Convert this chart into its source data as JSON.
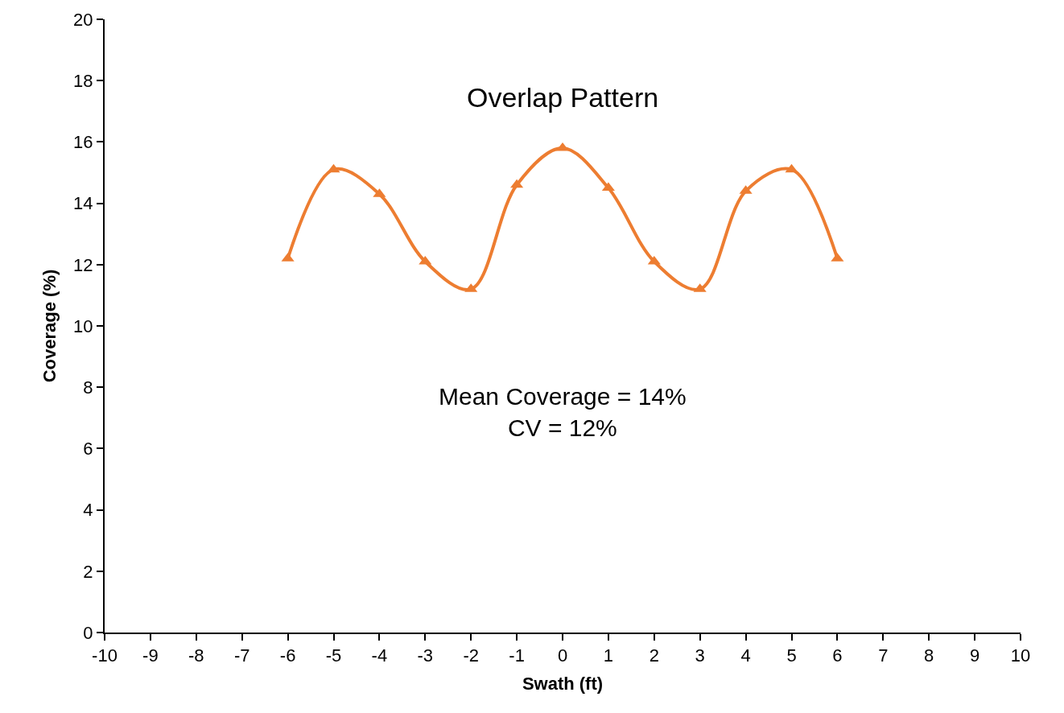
{
  "chart_data": {
    "type": "line",
    "title": "Overlap Pattern",
    "xlabel": "Swath (ft)",
    "ylabel": "Coverage (%)",
    "annotations": [
      "Mean Coverage = 14%\nCV = 12%"
    ],
    "x": [
      -6,
      -5,
      -4,
      -3,
      -2,
      -1,
      0,
      1,
      2,
      3,
      4,
      5,
      6
    ],
    "series": [
      {
        "color": "#ed7d31",
        "values": [
          12.2,
          15.1,
          14.3,
          12.1,
          11.2,
          14.6,
          15.8,
          14.5,
          12.1,
          11.2,
          14.4,
          15.1,
          12.2
        ]
      }
    ],
    "xlim": [
      -10,
      10
    ],
    "xticks": [
      -10,
      -9,
      -8,
      -7,
      -6,
      -5,
      -4,
      -3,
      -2,
      -1,
      0,
      1,
      2,
      3,
      4,
      5,
      6,
      7,
      8,
      9,
      10
    ],
    "ylim": [
      0,
      20
    ],
    "yticks": [
      0,
      2,
      4,
      6,
      8,
      10,
      12,
      14,
      16,
      18,
      20
    ],
    "marker": "triangle",
    "line_style": "solid"
  }
}
